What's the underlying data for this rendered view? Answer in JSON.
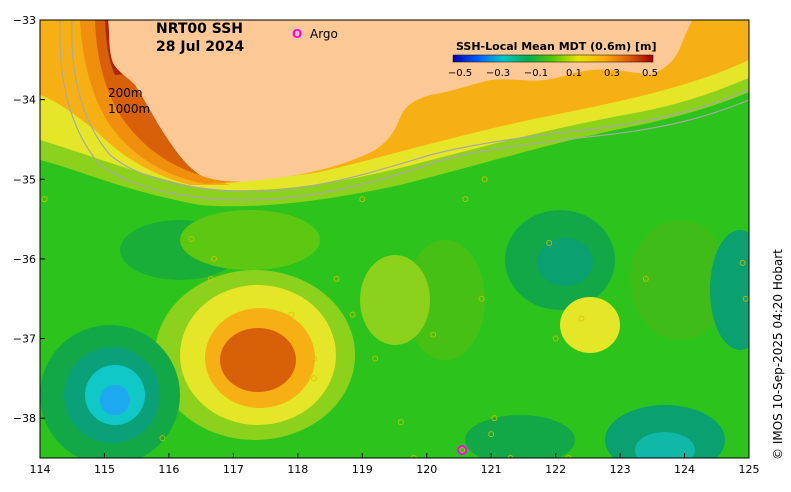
{
  "title": {
    "product": "NRT00 SSH",
    "date": "28 Jul 2024"
  },
  "legend": {
    "argo_symbol": "O",
    "argo_label": "Argo",
    "argo_color": "#ff00ff"
  },
  "isobaths": {
    "label_200": "200m",
    "label_1000": "1000m",
    "color": "#a8a8a8"
  },
  "colorbar": {
    "title": "SSH-Local Mean MDT (0.6m) [m]",
    "ticks": [
      "−0.5",
      "−0.3",
      "−0.1",
      "0.1",
      "0.3",
      "0.5"
    ],
    "stops": [
      "#0000b4",
      "#0060ff",
      "#00c8c8",
      "#00b050",
      "#5ac800",
      "#e6e600",
      "#ffb000",
      "#e06000",
      "#a00000"
    ]
  },
  "axes": {
    "lon_ticks": [
      "114",
      "115",
      "116",
      "117",
      "118",
      "119",
      "120",
      "121",
      "122",
      "123",
      "124",
      "125"
    ],
    "lat_ticks": [
      "−33",
      "−34",
      "−35",
      "−36",
      "−37",
      "−38"
    ],
    "lon_range": [
      114,
      125
    ],
    "lat_range": [
      -38.5,
      -33
    ]
  },
  "land_color": "#fcc896",
  "credit": "© IMOS 10-Sep-2025 04:20 Hobart"
}
